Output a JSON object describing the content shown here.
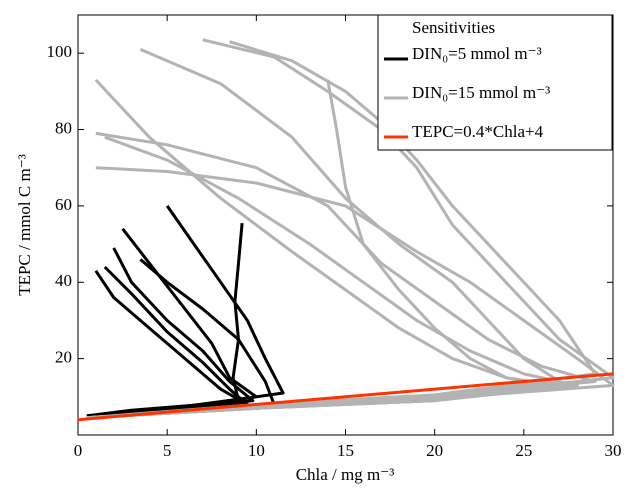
{
  "chart_data": {
    "type": "line",
    "xlabel": "Chla / mg m⁻³",
    "ylabel": "TEPC / mmol C m⁻³",
    "xlim": [
      0,
      30
    ],
    "xticks": [
      0,
      5,
      10,
      15,
      20,
      25,
      30
    ],
    "ylim": [
      0,
      110
    ],
    "yticks": [
      20,
      40,
      60,
      80,
      100
    ],
    "legend_title": "Sensitivities",
    "legend_position": "upper right",
    "series": [
      {
        "name": "DIN₀=5 mmol m⁻³",
        "color": "#000000",
        "curves": [
          {
            "x": [
              1,
              2,
              4,
              6,
              8,
              9.5,
              6,
              3,
              0.5
            ],
            "y": [
              43,
              36,
              28,
              20,
              12,
              8,
              6.5,
              5.5,
              4.5
            ]
          },
          {
            "x": [
              2,
              3,
              5,
              7,
              8.5,
              9.8,
              6,
              3,
              0.5
            ],
            "y": [
              49,
              40,
              30,
              22,
              14,
              9,
              7,
              6,
              4.7
            ]
          },
          {
            "x": [
              2.5,
              4,
              6,
              7.5,
              8.5,
              10,
              6,
              3,
              0.5
            ],
            "y": [
              54,
              45,
              33,
              24,
              15,
              10,
              7.5,
              6.2,
              5
            ]
          },
          {
            "x": [
              5,
              6.5,
              8,
              9.5,
              10.5,
              11.5,
              7,
              3,
              0.5
            ],
            "y": [
              60,
              50,
              40,
              30,
              20,
              11,
              8,
              6.5,
              5
            ]
          },
          {
            "x": [
              9.2,
              9,
              8.8,
              9,
              8.7,
              9,
              6,
              3,
              0.5
            ],
            "y": [
              55.5,
              45,
              35,
              25,
              15,
              9,
              7,
              5.5,
              4.5
            ]
          },
          {
            "x": [
              1.5,
              3,
              5,
              7,
              8.5,
              9.5,
              6,
              3,
              0.5
            ],
            "y": [
              44,
              37,
              27,
              19,
              12,
              8,
              6.5,
              5.5,
              4.6
            ]
          },
          {
            "x": [
              3.5,
              5,
              7,
              9,
              10.5,
              11,
              7,
              3,
              0.5
            ],
            "y": [
              46,
              40,
              33,
              25,
              14,
              8,
              6.5,
              5.5,
              4.6
            ]
          }
        ]
      },
      {
        "name": "DIN₀=15 mmol m⁻³",
        "color": "#b3b3b3",
        "curves": [
          {
            "x": [
              1,
              4,
              8,
              12,
              15,
              18,
              21,
              24,
              27,
              20,
              10,
              0.5
            ],
            "y": [
              93,
              78,
              62,
              48,
              38,
              28,
              20,
              15,
              13,
              9,
              7,
              4.5
            ]
          },
          {
            "x": [
              1,
              5,
              10,
              14,
              17,
              20,
              23,
              26,
              29,
              20,
              10,
              0.5
            ],
            "y": [
              79,
              76,
              70,
              60,
              45,
              35,
              25,
              18,
              14,
              10,
              7,
              4.5
            ]
          },
          {
            "x": [
              1,
              5,
              10,
              15,
              19,
              22,
              25,
              28,
              30,
              20,
              10,
              0.5
            ],
            "y": [
              70,
              69,
              66,
              60,
              48,
              40,
              30,
              20,
              13,
              9.5,
              7,
              4.5
            ]
          },
          {
            "x": [
              3.5,
              8,
              12,
              15,
              18,
              21,
              23,
              25,
              27,
              20,
              10,
              0.5
            ],
            "y": [
              101,
              92,
              78,
              62,
              50,
              40,
              30,
              20,
              14,
              10,
              7.5,
              4.5
            ]
          },
          {
            "x": [
              7,
              11,
              14,
              17,
              19,
              21,
              24,
              27,
              30,
              20,
              10,
              0.5
            ],
            "y": [
              103.5,
              99,
              90,
              80,
              70,
              55,
              40,
              25,
              15,
              10,
              7.5,
              4.5
            ]
          },
          {
            "x": [
              8.5,
              12,
              15,
              17,
              19,
              21,
              24,
              27,
              29,
              20,
              10,
              0.5
            ],
            "y": [
              103,
              98,
              90,
              82,
              72,
              60,
              45,
              30,
              16,
              10.5,
              8,
              4.5
            ]
          },
          {
            "x": [
              14,
              14.5,
              15,
              16,
              18,
              20,
              22,
              24,
              26,
              20,
              10,
              0.5
            ],
            "y": [
              93,
              80,
              65,
              50,
              38,
              28,
              20,
              15,
              13,
              9,
              7,
              4.5
            ]
          },
          {
            "x": [
              1.5,
              5,
              9,
              13,
              16,
              19,
              22,
              25,
              28,
              20,
              10,
              0.5
            ],
            "y": [
              78,
              72,
              62,
              50,
              40,
              30,
              22,
              16,
              13,
              9,
              7,
              4.5
            ]
          }
        ]
      },
      {
        "name": "TEPC=0.4*Chla+4",
        "color": "#ff3300",
        "curves": [
          {
            "x": [
              0,
              30
            ],
            "y": [
              4,
              16
            ]
          }
        ]
      }
    ]
  }
}
